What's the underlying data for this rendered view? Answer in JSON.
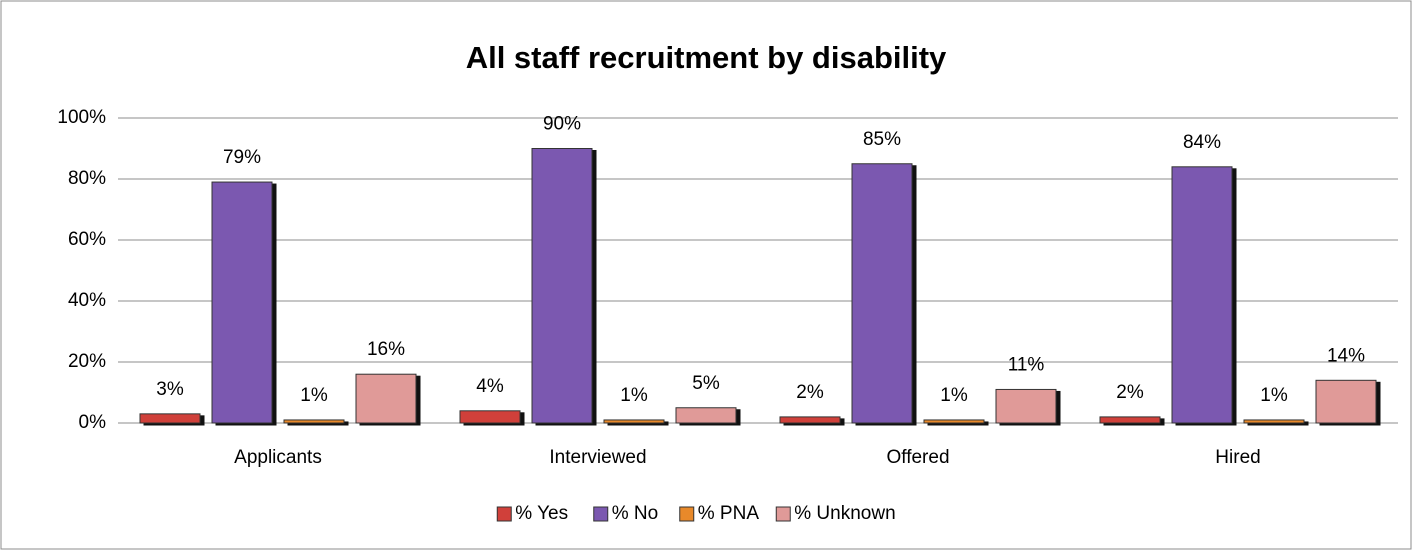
{
  "chart_data": {
    "type": "bar",
    "title": "All staff recruitment by disability",
    "categories": [
      "Applicants",
      "Interviewed",
      "Offered",
      "Hired"
    ],
    "series": [
      {
        "name": "% Yes",
        "color": "#d0403a",
        "values": [
          3,
          4,
          2,
          2
        ],
        "value_labels": [
          "3%",
          "4%",
          "2%",
          "2%"
        ]
      },
      {
        "name": "% No",
        "color": "#7b58b0",
        "values": [
          79,
          90,
          85,
          84
        ],
        "value_labels": [
          "79%",
          "90%",
          "85%",
          "84%"
        ]
      },
      {
        "name": "% PNA",
        "color": "#e8892a",
        "values": [
          1,
          1,
          1,
          1
        ],
        "value_labels": [
          "1%",
          "1%",
          "1%",
          "1%"
        ]
      },
      {
        "name": "% Unknown",
        "color": "#e09a98",
        "values": [
          16,
          5,
          11,
          14
        ],
        "value_labels": [
          "16%",
          "5%",
          "11%",
          "14%"
        ]
      }
    ],
    "ylim": [
      0,
      100
    ],
    "yticks": [
      {
        "value": 0,
        "label": "0%"
      },
      {
        "value": 20,
        "label": "20%"
      },
      {
        "value": 40,
        "label": "40%"
      },
      {
        "value": 60,
        "label": "60%"
      },
      {
        "value": 80,
        "label": "80%"
      },
      {
        "value": 100,
        "label": "100%"
      }
    ],
    "grid": true,
    "legend": "bottom"
  }
}
